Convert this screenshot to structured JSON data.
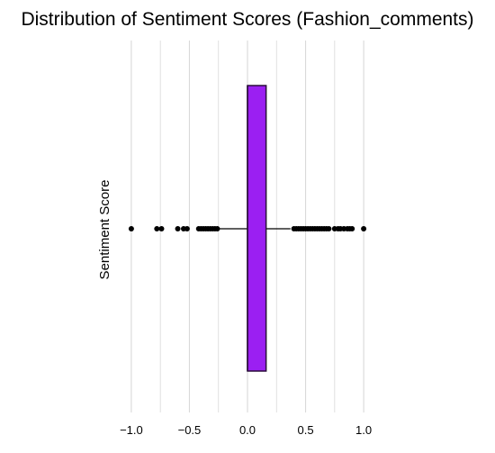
{
  "chart_data": {
    "type": "boxplot",
    "title": "Distribution of Sentiment Scores (Fashion_comments)",
    "xlabel": "",
    "ylabel": "Sentiment Score",
    "xlim": [
      -1.1,
      1.1
    ],
    "x_ticks": [
      -1.0,
      -0.5,
      0.0,
      0.5,
      1.0
    ],
    "x_tick_labels": [
      "−1.0",
      "−0.5",
      "0.0",
      "0.5",
      "1.0"
    ],
    "grid": "vertical",
    "box": {
      "q1": 0.0,
      "median": 0.0,
      "q3": 0.16,
      "whisker_low": -0.25,
      "whisker_high": 0.37
    },
    "outliers": [
      -1.0,
      -0.78,
      -0.74,
      -0.6,
      -0.55,
      -0.52,
      -0.42,
      -0.4,
      -0.38,
      -0.36,
      -0.34,
      -0.32,
      -0.3,
      -0.28,
      -0.26,
      0.4,
      0.42,
      0.44,
      0.46,
      0.48,
      0.5,
      0.52,
      0.54,
      0.56,
      0.58,
      0.6,
      0.62,
      0.64,
      0.66,
      0.68,
      0.7,
      0.75,
      0.78,
      0.8,
      0.83,
      0.86,
      0.88,
      0.9,
      1.0
    ],
    "colors": {
      "box_fill": "#9b1ff2",
      "box_edge": "#2a0f3a",
      "whisker": "#000000",
      "outlier": "#000000",
      "grid": "#d9d9d9"
    }
  }
}
